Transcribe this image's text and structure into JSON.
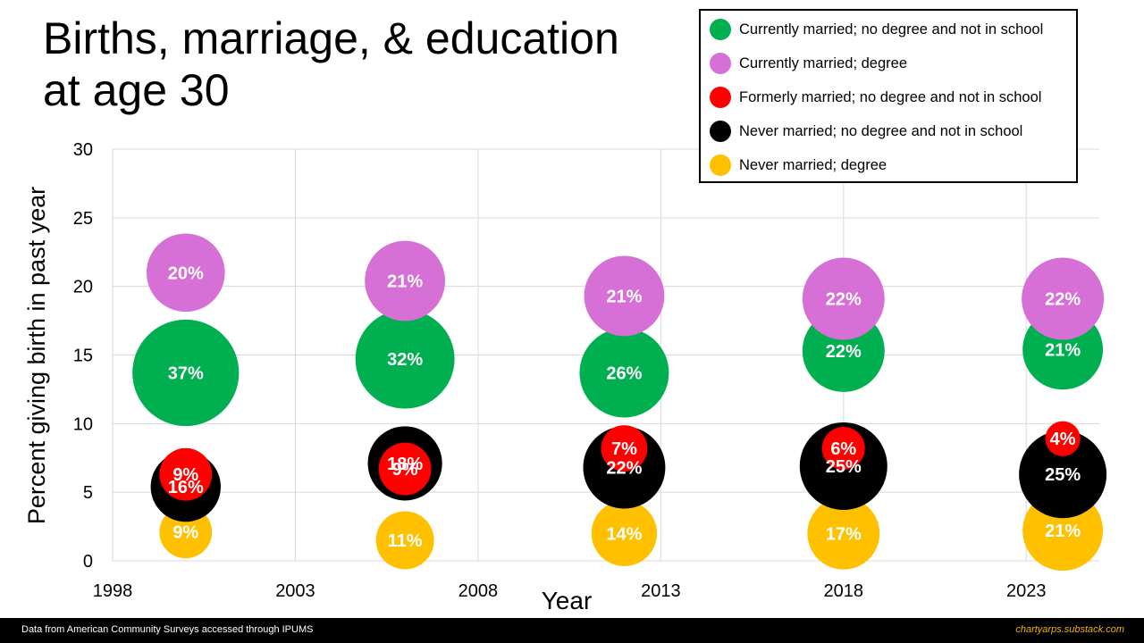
{
  "title_lines": [
    "Births, marriage, & education",
    "at age 30"
  ],
  "footer": {
    "source": "Data from American Community Surveys accessed through IPUMS",
    "credit": "chartyarps.substack.com"
  },
  "chart_data": {
    "type": "scatter",
    "variant": "bubble",
    "title": "Births, marriage, & education at age 30",
    "xlabel": "Year",
    "ylabel": "Percent giving birth in past year",
    "xlim": [
      1998,
      2025
    ],
    "ylim": [
      0,
      30
    ],
    "x_ticks": [
      1998,
      2003,
      2008,
      2013,
      2018,
      2023
    ],
    "y_ticks": [
      0,
      5,
      10,
      15,
      20,
      25,
      30
    ],
    "grid": true,
    "legend_position": "top-right",
    "bubble_label_meaning": "percent of group (bubble size)",
    "series": [
      {
        "name": "Never married; degree",
        "color": "#FFC000",
        "label_color": "#ffffff",
        "x": [
          2000,
          2006,
          2012,
          2018,
          2024
        ],
        "y": [
          2.1,
          1.5,
          2.0,
          2.0,
          2.2
        ],
        "size": [
          9,
          11,
          14,
          17,
          21
        ],
        "labels": [
          "9%",
          "11%",
          "14%",
          "17%",
          "21%"
        ]
      },
      {
        "name": "Never married; no degree and not in school",
        "color": "#000000",
        "label_color": "#ffffff",
        "x": [
          2000,
          2006,
          2012,
          2018,
          2024
        ],
        "y": [
          5.4,
          7.1,
          6.8,
          6.9,
          6.3
        ],
        "size": [
          16,
          18,
          22,
          25,
          25
        ],
        "labels": [
          "16%",
          "18%",
          "22%",
          "25%",
          "25%"
        ]
      },
      {
        "name": "Formerly married; no degree and not in school",
        "color": "#FF0000",
        "label_color": "#ffffff",
        "x": [
          2000,
          2006,
          2012,
          2018,
          2024
        ],
        "y": [
          6.3,
          6.7,
          8.2,
          8.2,
          8.9
        ],
        "size": [
          9,
          9,
          7,
          6,
          4
        ],
        "labels": [
          "9%",
          "9%",
          "7%",
          "6%",
          "4%"
        ]
      },
      {
        "name": "Currently married; no degree and not in school",
        "color": "#00B050",
        "label_color": "#ffffff",
        "x": [
          2000,
          2006,
          2012,
          2018,
          2024
        ],
        "y": [
          13.7,
          14.7,
          13.7,
          15.3,
          15.4
        ],
        "size": [
          37,
          32,
          26,
          22,
          21
        ],
        "labels": [
          "37%",
          "32%",
          "26%",
          "22%",
          "21%"
        ]
      },
      {
        "name": "Currently married; degree",
        "color": "#D670D6",
        "label_color": "#ffffff",
        "x": [
          2000,
          2006,
          2012,
          2018,
          2024
        ],
        "y": [
          21.0,
          20.4,
          19.3,
          19.1,
          19.1
        ],
        "size": [
          20,
          21,
          21,
          22,
          22
        ],
        "labels": [
          "20%",
          "21%",
          "21%",
          "22%",
          "22%"
        ]
      }
    ],
    "legend_order": [
      "Currently married; no degree and not in school",
      "Currently married; degree",
      "Formerly married; no degree and not in school",
      "Never married; no degree and not in school",
      "Never married; degree"
    ]
  }
}
